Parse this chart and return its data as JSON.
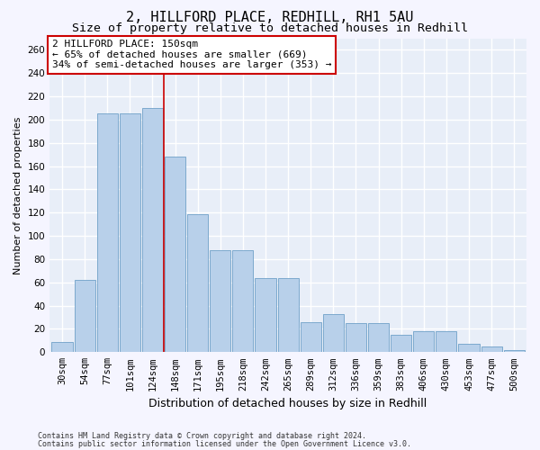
{
  "title_line1": "2, HILLFORD PLACE, REDHILL, RH1 5AU",
  "title_line2": "Size of property relative to detached houses in Redhill",
  "xlabel": "Distribution of detached houses by size in Redhill",
  "ylabel": "Number of detached properties",
  "footnote1": "Contains HM Land Registry data © Crown copyright and database right 2024.",
  "footnote2": "Contains public sector information licensed under the Open Government Licence v3.0.",
  "bar_labels": [
    "30sqm",
    "54sqm",
    "77sqm",
    "101sqm",
    "124sqm",
    "148sqm",
    "171sqm",
    "195sqm",
    "218sqm",
    "242sqm",
    "265sqm",
    "289sqm",
    "312sqm",
    "336sqm",
    "359sqm",
    "383sqm",
    "406sqm",
    "430sqm",
    "453sqm",
    "477sqm",
    "500sqm"
  ],
  "bar_values": [
    9,
    62,
    205,
    205,
    210,
    168,
    119,
    88,
    88,
    64,
    64,
    26,
    33,
    25,
    25,
    15,
    18,
    18,
    7,
    5,
    2
  ],
  "bar_color": "#b8d0ea",
  "bar_edge_color": "#6fa0c8",
  "background_color": "#e8eef8",
  "grid_color": "#ffffff",
  "vline_color": "#cc0000",
  "annotation_text": "2 HILLFORD PLACE: 150sqm\n← 65% of detached houses are smaller (669)\n34% of semi-detached houses are larger (353) →",
  "ylim": [
    0,
    270
  ],
  "yticks": [
    0,
    20,
    40,
    60,
    80,
    100,
    120,
    140,
    160,
    180,
    200,
    220,
    240,
    260
  ],
  "fig_bg": "#f5f5ff",
  "title_fontsize": 11,
  "subtitle_fontsize": 9.5,
  "ylabel_fontsize": 8,
  "xlabel_fontsize": 9,
  "tick_fontsize": 7.5,
  "annot_fontsize": 8,
  "footnote_fontsize": 6
}
